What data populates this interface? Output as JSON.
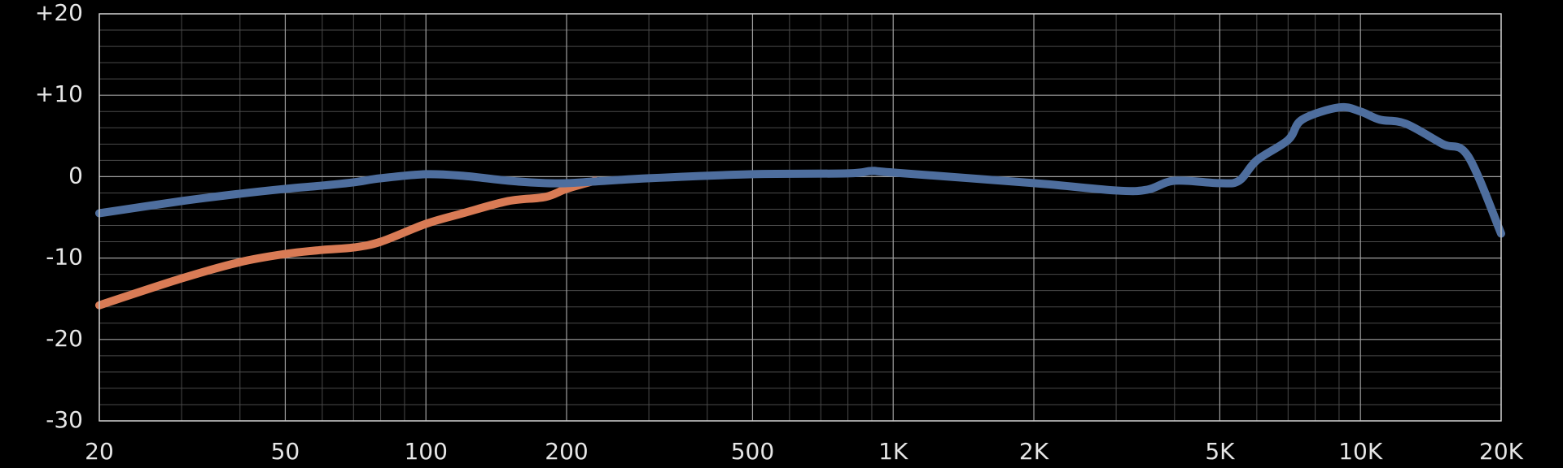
{
  "chart_data": {
    "type": "line",
    "xscale": "log",
    "x": [
      20,
      30,
      40,
      50,
      60,
      70,
      80,
      100,
      120,
      150,
      180,
      200,
      230,
      300,
      500,
      800,
      900,
      1000,
      2000,
      3000,
      3500,
      4000,
      5000,
      5500,
      6000,
      7000,
      7500,
      9000,
      10000,
      11000,
      12500,
      15000,
      17000,
      20000
    ],
    "series": [
      {
        "color": "#d97b55",
        "values": [
          -15.8,
          -12.5,
          -10.5,
          -9.5,
          -9,
          -8.7,
          -8,
          -5.8,
          -4.5,
          -3,
          -2.5,
          -1.5,
          -0.5,
          null,
          null,
          null,
          null,
          null,
          null,
          null,
          null,
          null,
          null,
          null,
          null,
          null,
          null,
          null,
          null,
          null,
          null,
          null,
          null,
          null
        ]
      },
      {
        "color": "#4e6e9e",
        "values": [
          -4.5,
          -3,
          -2.1,
          -1.5,
          -1.1,
          -0.7,
          -0.2,
          0.3,
          0.1,
          -0.5,
          -0.8,
          -0.8,
          -0.6,
          -0.2,
          0.3,
          0.4,
          0.7,
          0.5,
          -0.8,
          -1.7,
          -1.6,
          -0.5,
          -0.8,
          -0.5,
          2,
          4.5,
          7,
          8.5,
          8,
          7,
          6.5,
          4,
          2.5,
          -7
        ]
      }
    ],
    "xlim": [
      20,
      20000
    ],
    "ylim": [
      -30,
      20
    ],
    "xticks": [
      20,
      50,
      100,
      200,
      500,
      {
        "value": 1000,
        "label": "1K"
      },
      {
        "value": 2000,
        "label": "2K"
      },
      {
        "value": 5000,
        "label": "5K"
      },
      {
        "value": 10000,
        "label": "10K"
      },
      {
        "value": 20000,
        "label": "20K"
      }
    ],
    "xgrid": [
      30,
      40,
      60,
      70,
      80,
      90,
      300,
      400,
      600,
      700,
      800,
      900,
      3000,
      4000,
      6000,
      7000,
      8000,
      9000
    ],
    "yticks": [
      {
        "value": 20,
        "label": "+20"
      },
      {
        "value": 10,
        "label": "+10"
      },
      0,
      -10,
      -20,
      -30
    ],
    "ygrid": [
      18,
      16,
      14,
      12,
      8,
      6,
      4,
      2,
      -2,
      -4,
      -6,
      -8,
      -12,
      -14,
      -16,
      -18,
      -22,
      -24,
      -26,
      -28
    ],
    "grid": true
  }
}
